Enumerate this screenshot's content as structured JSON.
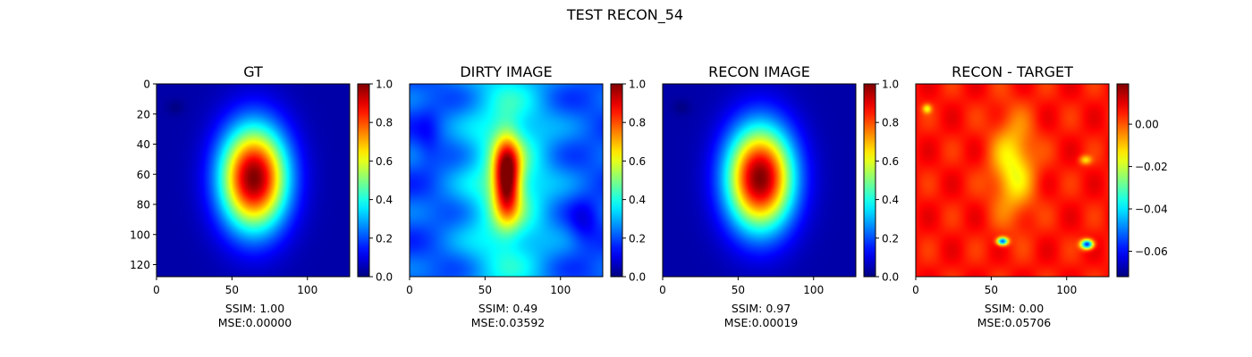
{
  "figure_title": "TEST RECON_54",
  "colors": {
    "colormap": "jet",
    "jet_stops": [
      "#00007f",
      "#0000ff",
      "#007fff",
      "#00ffff",
      "#7fff7f",
      "#ffff00",
      "#ff7f00",
      "#ff0000",
      "#7f0000"
    ]
  },
  "chart_data": [
    {
      "type": "heatmap",
      "title": "GT",
      "pattern": "ellipse",
      "x_ticks": [
        "0",
        "50",
        "100"
      ],
      "y_ticks": [
        "0",
        "20",
        "40",
        "60",
        "80",
        "100",
        "120"
      ],
      "xlim": [
        0,
        128
      ],
      "ylim": [
        128,
        0
      ],
      "colorbar": {
        "range": [
          0.0,
          1.0
        ],
        "ticks": [
          "0.0",
          "0.2",
          "0.4",
          "0.6",
          "0.8",
          "1.0"
        ],
        "tick_values": [
          0.0,
          0.2,
          0.4,
          0.6,
          0.8,
          1.0
        ]
      },
      "ssim_label": "SSIM: 1.00",
      "mse_label": "MSE:0.00000"
    },
    {
      "type": "heatmap",
      "title": "DIRTY IMAGE",
      "pattern": "dirty",
      "x_ticks": [
        "0",
        "50",
        "100"
      ],
      "y_ticks": [],
      "xlim": [
        0,
        128
      ],
      "ylim": [
        128,
        0
      ],
      "colorbar": {
        "range": [
          0.0,
          1.0
        ],
        "ticks": [
          "0.0",
          "0.2",
          "0.4",
          "0.6",
          "0.8",
          "1.0"
        ],
        "tick_values": [
          0.0,
          0.2,
          0.4,
          0.6,
          0.8,
          1.0
        ]
      },
      "ssim_label": "SSIM: 0.49",
      "mse_label": "MSE:0.03592"
    },
    {
      "type": "heatmap",
      "title": "RECON IMAGE",
      "pattern": "ellipse",
      "x_ticks": [
        "0",
        "50",
        "100"
      ],
      "y_ticks": [],
      "xlim": [
        0,
        128
      ],
      "ylim": [
        128,
        0
      ],
      "colorbar": {
        "range": [
          0.0,
          1.0
        ],
        "ticks": [
          "0.0",
          "0.2",
          "0.4",
          "0.6",
          "0.8",
          "1.0"
        ],
        "tick_values": [
          0.0,
          0.2,
          0.4,
          0.6,
          0.8,
          1.0
        ]
      },
      "ssim_label": "SSIM: 0.97",
      "mse_label": "MSE:0.00019"
    },
    {
      "type": "heatmap",
      "title": "RECON - TARGET",
      "pattern": "diff",
      "x_ticks": [
        "0",
        "50",
        "100"
      ],
      "y_ticks": [],
      "xlim": [
        0,
        128
      ],
      "ylim": [
        128,
        0
      ],
      "colorbar": {
        "range": [
          -0.072,
          0.019
        ],
        "ticks": [
          "0.00",
          "−0.02",
          "−0.04",
          "−0.06"
        ],
        "tick_values": [
          0.0,
          -0.02,
          -0.04,
          -0.06
        ]
      },
      "ssim_label": "SSIM: 0.00",
      "mse_label": "MSE:0.05706"
    }
  ]
}
